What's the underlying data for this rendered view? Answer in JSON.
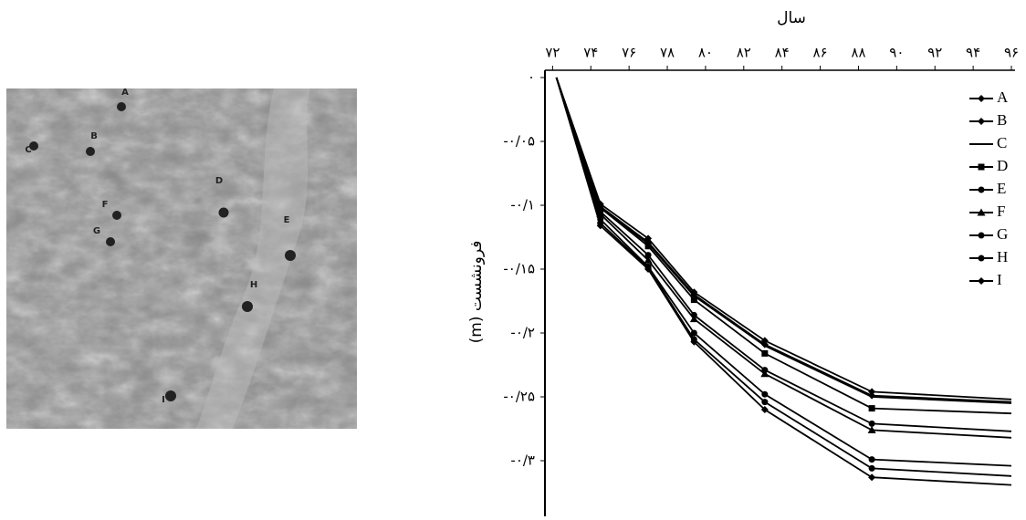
{
  "map": {
    "points": [
      {
        "label": "A"
      },
      {
        "label": "B"
      },
      {
        "label": "C"
      },
      {
        "label": "D"
      },
      {
        "label": "E"
      },
      {
        "label": "F"
      },
      {
        "label": "G"
      },
      {
        "label": "H"
      },
      {
        "label": "I"
      }
    ]
  },
  "chart_data": {
    "type": "line",
    "x_label": "سال",
    "y_label": "فرونشست (m)",
    "xlim": [
      71.6,
      96
    ],
    "ylim": [
      -0.34,
      0
    ],
    "xticks": [
      {
        "value": 72,
        "label": "۷۲"
      },
      {
        "value": 74,
        "label": "۷۴"
      },
      {
        "value": 76,
        "label": "۷۶"
      },
      {
        "value": 78,
        "label": "۷۸"
      },
      {
        "value": 80,
        "label": "۸۰"
      },
      {
        "value": 82,
        "label": "۸۲"
      },
      {
        "value": 84,
        "label": "۸۴"
      },
      {
        "value": 86,
        "label": "۸۶"
      },
      {
        "value": 88,
        "label": "۸۸"
      },
      {
        "value": 90,
        "label": "۹۰"
      },
      {
        "value": 92,
        "label": "۹۲"
      },
      {
        "value": 94,
        "label": "۹۴"
      },
      {
        "value": 96,
        "label": "۹۶"
      }
    ],
    "yticks": [
      {
        "value": 0,
        "label": "۰"
      },
      {
        "value": -0.05,
        "label": "-۰/۰۵"
      },
      {
        "value": -0.1,
        "label": "-۰/۱"
      },
      {
        "value": -0.15,
        "label": "-۰/۱۵"
      },
      {
        "value": -0.2,
        "label": "-۰/۲"
      },
      {
        "value": -0.25,
        "label": "-۰/۲۵"
      },
      {
        "value": -0.3,
        "label": "-۰/۳"
      }
    ],
    "x": [
      72.2,
      74.5,
      77,
      79.4,
      83.1,
      88.7,
      96
    ],
    "series": [
      {
        "name": "A",
        "color": "#000000",
        "marker": "diamond",
        "values": [
          0,
          -0.099,
          -0.126,
          -0.168,
          -0.206,
          -0.246,
          -0.252
        ]
      },
      {
        "name": "B",
        "color": "#000000",
        "marker": "diamond",
        "values": [
          0,
          -0.101,
          -0.129,
          -0.17,
          -0.209,
          -0.249,
          -0.254
        ]
      },
      {
        "name": "C",
        "color": "#000000",
        "marker": "none",
        "values": [
          0,
          -0.102,
          -0.13,
          -0.171,
          -0.21,
          -0.25,
          -0.255
        ]
      },
      {
        "name": "D",
        "color": "#000000",
        "marker": "square",
        "values": [
          0,
          -0.102,
          -0.132,
          -0.174,
          -0.216,
          -0.259,
          -0.263
        ]
      },
      {
        "name": "E",
        "color": "#000000",
        "marker": "circle",
        "values": [
          0,
          -0.105,
          -0.139,
          -0.186,
          -0.229,
          -0.271,
          -0.277
        ]
      },
      {
        "name": "F",
        "color": "#000000",
        "marker": "triangle",
        "values": [
          0,
          -0.107,
          -0.143,
          -0.189,
          -0.232,
          -0.276,
          -0.282
        ]
      },
      {
        "name": "G",
        "color": "#000000",
        "marker": "circle",
        "values": [
          0,
          -0.111,
          -0.148,
          -0.2,
          -0.248,
          -0.299,
          -0.304
        ]
      },
      {
        "name": "H",
        "color": "#000000",
        "marker": "circle",
        "values": [
          0,
          -0.114,
          -0.149,
          -0.205,
          -0.254,
          -0.306,
          -0.312
        ]
      },
      {
        "name": "I",
        "color": "#000000",
        "marker": "diamond",
        "values": [
          0,
          -0.116,
          -0.15,
          -0.207,
          -0.26,
          -0.313,
          -0.319
        ]
      }
    ]
  }
}
